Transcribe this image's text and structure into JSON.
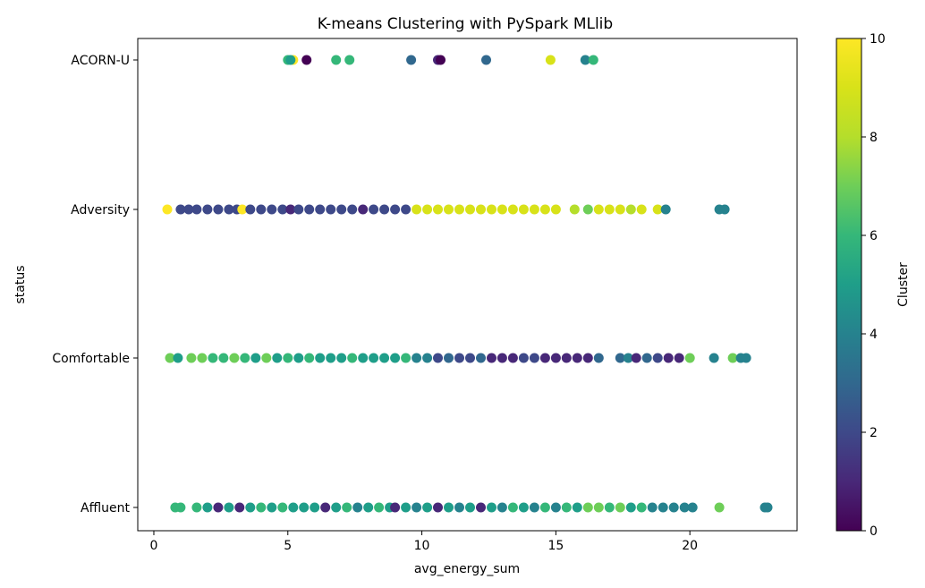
{
  "chart_data": {
    "type": "scatter",
    "title": "K-means Clustering with PySpark MLlib",
    "xlabel": "avg_energy_sum",
    "ylabel": "status",
    "xlim": [
      -0.6,
      24.0
    ],
    "x_ticks": [
      "0",
      "5",
      "10",
      "15",
      "20"
    ],
    "x_tick_values": [
      0,
      5,
      10,
      15,
      20
    ],
    "categories": [
      "Affluent",
      "Comfortable",
      "Adversity",
      "ACORN-U"
    ],
    "colorbar": {
      "label": "Cluster",
      "range": [
        0,
        10
      ],
      "ticks": [
        "0",
        "2",
        "4",
        "6",
        "8",
        "10"
      ],
      "tick_values": [
        0,
        2,
        4,
        6,
        8,
        10
      ],
      "colormap": "viridis"
    },
    "grid": false,
    "points": {
      "ACORN-U": [
        [
          5.0,
          6
        ],
        [
          5.2,
          10
        ],
        [
          5.1,
          5
        ],
        [
          5.7,
          0
        ],
        [
          6.8,
          6
        ],
        [
          7.3,
          6
        ],
        [
          9.6,
          3
        ],
        [
          10.6,
          1
        ],
        [
          10.7,
          0
        ],
        [
          12.4,
          3
        ],
        [
          14.8,
          9
        ],
        [
          16.1,
          4
        ],
        [
          16.4,
          6
        ]
      ],
      "Adversity": [
        [
          0.5,
          10
        ],
        [
          1.0,
          2
        ],
        [
          1.3,
          2
        ],
        [
          1.6,
          2
        ],
        [
          2.0,
          2
        ],
        [
          2.4,
          2
        ],
        [
          2.8,
          2
        ],
        [
          3.1,
          2
        ],
        [
          3.3,
          10
        ],
        [
          3.6,
          2
        ],
        [
          4.0,
          2
        ],
        [
          4.4,
          2
        ],
        [
          4.8,
          2
        ],
        [
          5.1,
          1
        ],
        [
          5.4,
          2
        ],
        [
          5.8,
          2
        ],
        [
          6.2,
          2
        ],
        [
          6.6,
          2
        ],
        [
          7.0,
          2
        ],
        [
          7.4,
          2
        ],
        [
          7.8,
          1
        ],
        [
          8.2,
          2
        ],
        [
          8.6,
          2
        ],
        [
          9.0,
          2
        ],
        [
          9.4,
          2
        ],
        [
          9.8,
          9
        ],
        [
          10.2,
          9
        ],
        [
          10.6,
          9
        ],
        [
          11.0,
          9
        ],
        [
          11.4,
          9
        ],
        [
          11.8,
          9
        ],
        [
          12.2,
          9
        ],
        [
          12.6,
          9
        ],
        [
          13.0,
          9
        ],
        [
          13.4,
          9
        ],
        [
          13.8,
          9
        ],
        [
          14.2,
          9
        ],
        [
          14.6,
          9
        ],
        [
          15.0,
          9
        ],
        [
          15.7,
          8
        ],
        [
          16.2,
          7
        ],
        [
          16.6,
          9
        ],
        [
          17.0,
          9
        ],
        [
          17.4,
          9
        ],
        [
          17.8,
          8
        ],
        [
          18.2,
          9
        ],
        [
          18.8,
          9
        ],
        [
          19.1,
          4
        ],
        [
          21.1,
          4
        ],
        [
          21.3,
          4
        ]
      ],
      "Comfortable": [
        [
          0.6,
          7
        ],
        [
          0.9,
          5
        ],
        [
          1.4,
          7
        ],
        [
          1.8,
          7
        ],
        [
          2.2,
          6
        ],
        [
          2.6,
          6
        ],
        [
          3.0,
          7
        ],
        [
          3.4,
          6
        ],
        [
          3.8,
          5
        ],
        [
          4.2,
          7
        ],
        [
          4.6,
          5
        ],
        [
          5.0,
          6
        ],
        [
          5.4,
          5
        ],
        [
          5.8,
          6
        ],
        [
          6.2,
          5
        ],
        [
          6.6,
          5
        ],
        [
          7.0,
          5
        ],
        [
          7.4,
          6
        ],
        [
          7.8,
          5
        ],
        [
          8.2,
          5
        ],
        [
          8.6,
          5
        ],
        [
          9.0,
          5
        ],
        [
          9.4,
          6
        ],
        [
          9.8,
          4
        ],
        [
          10.2,
          4
        ],
        [
          10.6,
          2
        ],
        [
          11.0,
          3
        ],
        [
          11.4,
          2
        ],
        [
          11.8,
          2
        ],
        [
          12.2,
          3
        ],
        [
          12.6,
          1
        ],
        [
          13.0,
          1
        ],
        [
          13.4,
          1
        ],
        [
          13.8,
          2
        ],
        [
          14.2,
          2
        ],
        [
          14.6,
          1
        ],
        [
          15.0,
          1
        ],
        [
          15.4,
          1
        ],
        [
          15.8,
          1
        ],
        [
          16.2,
          1
        ],
        [
          16.6,
          3
        ],
        [
          17.4,
          3
        ],
        [
          17.7,
          4
        ],
        [
          18.0,
          1
        ],
        [
          18.4,
          3
        ],
        [
          18.8,
          2
        ],
        [
          19.2,
          1
        ],
        [
          19.6,
          1
        ],
        [
          20.0,
          7
        ],
        [
          20.9,
          4
        ],
        [
          21.6,
          7
        ],
        [
          21.9,
          4
        ],
        [
          22.1,
          4
        ]
      ],
      "Affluent": [
        [
          0.8,
          6
        ],
        [
          1.0,
          6
        ],
        [
          1.6,
          6
        ],
        [
          2.0,
          5
        ],
        [
          2.4,
          1
        ],
        [
          2.8,
          5
        ],
        [
          3.2,
          1
        ],
        [
          3.6,
          5
        ],
        [
          4.0,
          6
        ],
        [
          4.4,
          5
        ],
        [
          4.8,
          6
        ],
        [
          5.2,
          5
        ],
        [
          5.6,
          5
        ],
        [
          6.0,
          5
        ],
        [
          6.4,
          1
        ],
        [
          6.8,
          5
        ],
        [
          7.2,
          6
        ],
        [
          7.6,
          4
        ],
        [
          8.0,
          5
        ],
        [
          8.4,
          6
        ],
        [
          8.8,
          5
        ],
        [
          9.0,
          1
        ],
        [
          9.4,
          5
        ],
        [
          9.8,
          4
        ],
        [
          10.2,
          5
        ],
        [
          10.6,
          1
        ],
        [
          11.0,
          5
        ],
        [
          11.4,
          4
        ],
        [
          11.8,
          5
        ],
        [
          12.2,
          1
        ],
        [
          12.6,
          5
        ],
        [
          13.0,
          4
        ],
        [
          13.4,
          6
        ],
        [
          13.8,
          5
        ],
        [
          14.2,
          4
        ],
        [
          14.6,
          6
        ],
        [
          15.0,
          4
        ],
        [
          15.4,
          6
        ],
        [
          15.8,
          5
        ],
        [
          16.2,
          7
        ],
        [
          16.6,
          7
        ],
        [
          17.0,
          6
        ],
        [
          17.4,
          7
        ],
        [
          17.8,
          5
        ],
        [
          18.2,
          6
        ],
        [
          18.6,
          4
        ],
        [
          19.0,
          4
        ],
        [
          19.4,
          4
        ],
        [
          19.8,
          4
        ],
        [
          20.1,
          4
        ],
        [
          21.1,
          7
        ],
        [
          22.8,
          4
        ],
        [
          22.9,
          4
        ]
      ]
    }
  }
}
